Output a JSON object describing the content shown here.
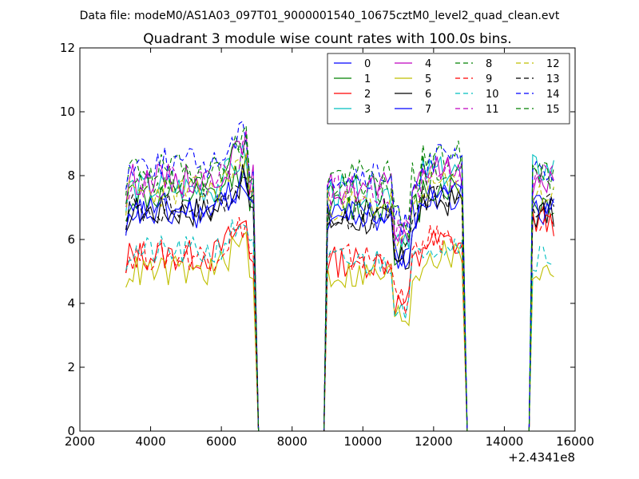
{
  "supertitle": "Data file: modeM0/AS1A03_097T01_9000001540_10675cztM0_level2_quad_clean.evt",
  "chart_data": {
    "type": "line",
    "title": "Quadrant 3 module wise count rates with 100.0s bins.",
    "xlabel": "",
    "ylabel": "",
    "x_offset_label": "+2.4341e8",
    "xlim": [
      2000,
      16000
    ],
    "ylim": [
      0,
      12
    ],
    "xticks": [
      2000,
      4000,
      6000,
      8000,
      10000,
      12000,
      14000,
      16000
    ],
    "xtick_labels": [
      "2000",
      "4000",
      "6000",
      "8000",
      "10000",
      "12000",
      "14000",
      "16000"
    ],
    "yticks": [
      0,
      2,
      4,
      6,
      8,
      10,
      12
    ],
    "ytick_labels": [
      "0",
      "2",
      "4",
      "6",
      "8",
      "10",
      "12"
    ],
    "grid": false,
    "legend_position": "top-right",
    "legend_columns": 4,
    "segments": [
      {
        "start": 3300,
        "end": 6900
      },
      {
        "start": 9000,
        "end": 12800
      },
      {
        "start": 14800,
        "end": 15450
      }
    ],
    "series": [
      {
        "name": "0",
        "color": "#0000ff",
        "dash": "solid",
        "levels": [
          7.0,
          6.8,
          7.2
        ]
      },
      {
        "name": "1",
        "color": "#008000",
        "dash": "solid",
        "levels": [
          7.3,
          7.0,
          7.1
        ]
      },
      {
        "name": "2",
        "color": "#ff0000",
        "dash": "solid",
        "levels": [
          5.5,
          5.3,
          6.6
        ]
      },
      {
        "name": "3",
        "color": "#00bfbf",
        "dash": "solid",
        "levels": [
          7.6,
          7.5,
          8.2
        ]
      },
      {
        "name": "4",
        "color": "#bf00bf",
        "dash": "solid",
        "levels": [
          7.9,
          7.6,
          7.8
        ]
      },
      {
        "name": "5",
        "color": "#bfbf00",
        "dash": "solid",
        "levels": [
          5.0,
          4.9,
          5.0
        ]
      },
      {
        "name": "6",
        "color": "#000000",
        "dash": "solid",
        "levels": [
          6.9,
          6.6,
          6.8
        ]
      },
      {
        "name": "7",
        "color": "#0000ff",
        "dash": "solid",
        "levels": [
          6.8,
          6.7,
          6.9
        ]
      },
      {
        "name": "8",
        "color": "#008000",
        "dash": "dashed",
        "levels": [
          8.2,
          8.0,
          8.1
        ]
      },
      {
        "name": "9",
        "color": "#ff0000",
        "dash": "dashed",
        "levels": [
          5.5,
          5.4,
          6.5
        ]
      },
      {
        "name": "10",
        "color": "#00bfbf",
        "dash": "dashed",
        "levels": [
          5.6,
          5.3,
          5.5
        ]
      },
      {
        "name": "11",
        "color": "#bf00bf",
        "dash": "dashed",
        "levels": [
          7.8,
          7.5,
          7.9
        ]
      },
      {
        "name": "12",
        "color": "#bfbf00",
        "dash": "dashed",
        "levels": [
          7.5,
          7.1,
          7.4
        ]
      },
      {
        "name": "13",
        "color": "#000000",
        "dash": "dashed",
        "levels": [
          7.0,
          6.8,
          7.0
        ]
      },
      {
        "name": "14",
        "color": "#0000ff",
        "dash": "dashed",
        "levels": [
          8.4,
          7.9,
          8.0
        ]
      },
      {
        "name": "15",
        "color": "#008000",
        "dash": "dashed",
        "levels": [
          7.9,
          7.6,
          8.0
        ]
      }
    ]
  }
}
